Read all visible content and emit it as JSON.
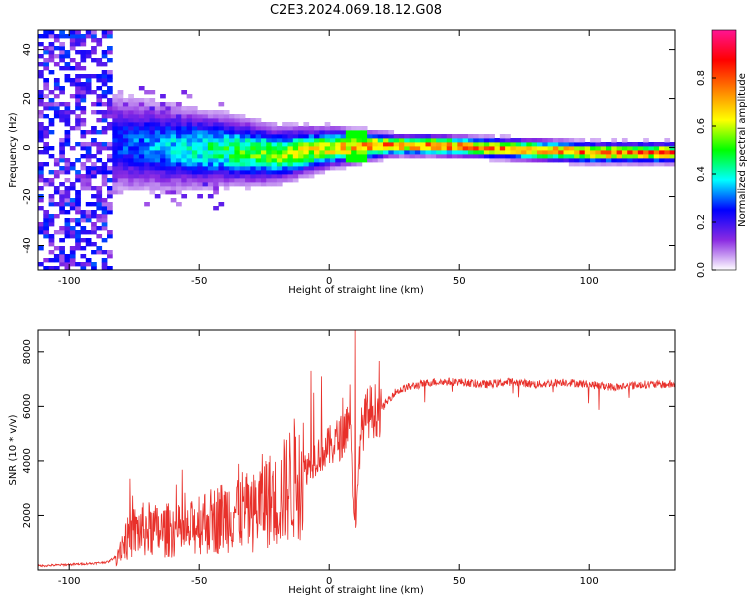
{
  "figure": {
    "title": "C2E3.2024.069.18.12.G08"
  },
  "chart_data": [
    {
      "type": "heatmap",
      "title": "C2E3.2024.069.18.12.G08",
      "xlabel": "Height of straight line (km)",
      "ylabel": "Frequency (Hz)",
      "xlim": [
        -112,
        133
      ],
      "ylim": [
        -50,
        48
      ],
      "xticks": [
        -100,
        -50,
        0,
        50,
        100
      ],
      "xtick_labels": [
        "-100",
        "-50",
        "0",
        "50",
        "100"
      ],
      "yticks": [
        -40,
        -20,
        0,
        20,
        40
      ],
      "ytick_labels": [
        "-40",
        "-20",
        "0",
        "20",
        "40"
      ],
      "colorbar": {
        "label": "Normalized spectral amplitude",
        "range": [
          0,
          1
        ],
        "ticks": [
          0.0,
          0.2,
          0.4,
          0.6,
          0.8
        ],
        "tick_labels": [
          "0.0",
          "0.2",
          "0.4",
          "0.6",
          "0.8"
        ],
        "colormap": [
          "#ffffff",
          "#8a2be2",
          "#0000ff",
          "#00ffff",
          "#00ff00",
          "#ffff00",
          "#ff8000",
          "#ff0000",
          "#ff1493"
        ]
      },
      "ridge": {
        "x": [
          -80,
          -60,
          -40,
          -20,
          0,
          20,
          40,
          60,
          80,
          100,
          133
        ],
        "frequency": [
          2,
          0,
          -1,
          -3,
          0,
          1,
          1,
          0,
          -1,
          -2,
          -2
        ]
      }
    },
    {
      "type": "line",
      "xlabel": "Height of straight line (km)",
      "ylabel": "SNR (10 * v/v)",
      "xlim": [
        -112,
        133
      ],
      "ylim": [
        0,
        8800
      ],
      "xticks": [
        -100,
        -50,
        0,
        50,
        100
      ],
      "xtick_labels": [
        "-100",
        "-50",
        "0",
        "50",
        "100"
      ],
      "yticks": [
        2000,
        4000,
        6000,
        8000
      ],
      "ytick_labels": [
        "2000",
        "4000",
        "6000",
        "8000"
      ],
      "line_color": "#e8302a",
      "series": [
        {
          "name": "SNR",
          "x": [
            -112,
            -100,
            -90,
            -85,
            -82,
            -80,
            -75,
            -70,
            -65,
            -60,
            -55,
            -50,
            -45,
            -40,
            -35,
            -30,
            -25,
            -20,
            -15,
            -10,
            -5,
            0,
            5,
            8,
            10,
            12,
            15,
            20,
            25,
            30,
            40,
            50,
            60,
            70,
            80,
            90,
            100,
            110,
            120,
            133
          ],
          "values": [
            150,
            200,
            250,
            300,
            500,
            900,
            1400,
            1500,
            1400,
            1500,
            1300,
            1800,
            1800,
            2000,
            2300,
            2000,
            2600,
            2500,
            3200,
            3600,
            4200,
            4500,
            4900,
            5600,
            1200,
            5000,
            5800,
            5900,
            6500,
            6700,
            6900,
            6900,
            6800,
            6900,
            6800,
            6900,
            6800,
            6700,
            6800,
            6800
          ],
          "spikes": {
            "x": [
              10,
              8,
              -3,
              -6,
              -7,
              -10
            ],
            "values": [
              8800,
              6800,
              7100,
              6500,
              7300,
              5400
            ]
          }
        }
      ]
    }
  ]
}
